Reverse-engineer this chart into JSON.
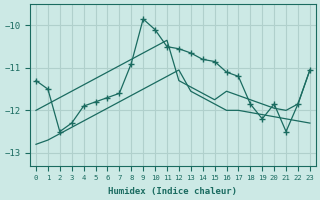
{
  "xlabel": "Humidex (Indice chaleur)",
  "background_color": "#cce9e5",
  "grid_color": "#b0d0cc",
  "line_color": "#1a6b60",
  "x_data": [
    0,
    1,
    2,
    3,
    4,
    5,
    6,
    7,
    8,
    9,
    10,
    11,
    12,
    13,
    14,
    15,
    16,
    17,
    18,
    19,
    20,
    21,
    22,
    23
  ],
  "main_y": [
    -11.3,
    -11.5,
    -12.5,
    -12.3,
    -11.9,
    -11.8,
    -11.7,
    -11.6,
    -10.9,
    -9.85,
    -10.1,
    -10.5,
    -10.55,
    -10.65,
    -10.8,
    -10.85,
    -11.1,
    -11.2,
    -11.85,
    -12.2,
    -11.85,
    -12.5,
    -11.85,
    -11.05
  ],
  "upper_y": [
    -12.0,
    -11.85,
    -11.7,
    -11.55,
    -11.4,
    -11.25,
    -11.1,
    -10.95,
    -10.8,
    -10.65,
    -10.5,
    -10.35,
    -11.3,
    -11.45,
    -11.6,
    -11.75,
    -11.55,
    -11.65,
    -11.75,
    -11.85,
    -11.95,
    -12.0,
    -11.85,
    -11.05
  ],
  "lower_y": [
    -12.8,
    -12.7,
    -12.55,
    -12.4,
    -12.25,
    -12.1,
    -11.95,
    -11.8,
    -11.65,
    -11.5,
    -11.35,
    -11.2,
    -11.05,
    -11.55,
    -11.7,
    -11.85,
    -12.0,
    -12.0,
    -12.05,
    -12.1,
    -12.15,
    -12.2,
    -12.25,
    -12.3
  ],
  "ylim": [
    -13.3,
    -9.5
  ],
  "xlim": [
    -0.5,
    23.5
  ],
  "yticks": [
    -13,
    -12,
    -11,
    -10
  ],
  "xticks": [
    0,
    1,
    2,
    3,
    4,
    5,
    6,
    7,
    8,
    9,
    10,
    11,
    12,
    13,
    14,
    15,
    16,
    17,
    18,
    19,
    20,
    21,
    22,
    23
  ]
}
